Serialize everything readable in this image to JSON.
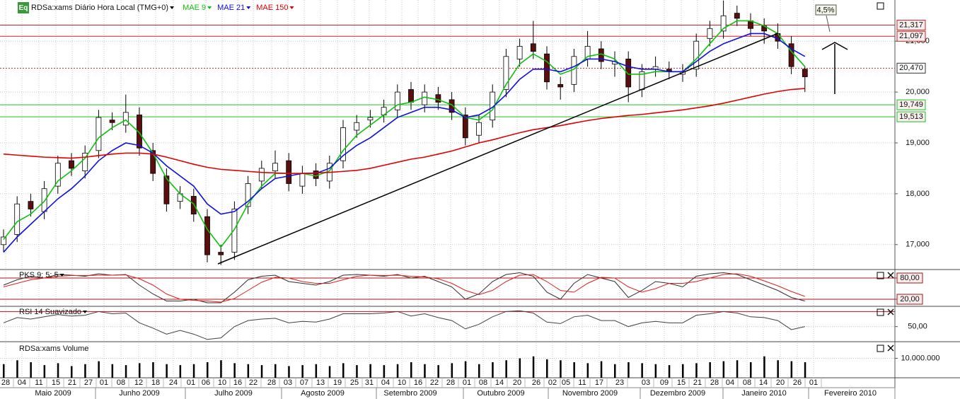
{
  "chart_data": [
    {
      "type": "candlestick",
      "icon_label": "Eq",
      "title": "RDSa:xams Diário Hora Local (TMG+0)",
      "open": [
        17000,
        17200,
        17850,
        17650,
        18150,
        18650,
        18450,
        18850,
        19450,
        19350,
        19550,
        18850,
        18350,
        17850,
        17950,
        17550,
        16850,
        16850,
        17750,
        18250,
        18450,
        18650,
        18150,
        18450,
        18250,
        18650,
        19250,
        19450,
        19550,
        19650,
        20050,
        19750,
        19950,
        19850,
        19550,
        19150,
        19450,
        20050,
        20650,
        20950,
        20750,
        20150,
        20150,
        20650,
        20850,
        20550,
        20650,
        20050,
        20450,
        20450,
        20350,
        20450,
        21050,
        21200,
        21550,
        21400,
        21300,
        21150,
        20950,
        20450
      ],
      "high": [
        17300,
        17950,
        18000,
        18250,
        18750,
        18800,
        18950,
        19650,
        19600,
        19950,
        19700,
        19000,
        18500,
        18150,
        18100,
        17700,
        17000,
        17850,
        18350,
        18650,
        18850,
        18800,
        18550,
        18600,
        18750,
        19450,
        19550,
        19650,
        19850,
        20150,
        20200,
        20150,
        20100,
        20000,
        19700,
        19550,
        20150,
        20850,
        21050,
        21400,
        20900,
        20300,
        20850,
        21200,
        21000,
        20800,
        20800,
        20550,
        20700,
        20600,
        20550,
        21150,
        21400,
        21800,
        21700,
        21550,
        21450,
        21350,
        21100,
        20500
      ],
      "low": [
        16850,
        17050,
        17550,
        17500,
        18000,
        18350,
        18300,
        18700,
        19250,
        19200,
        18750,
        18250,
        17650,
        17700,
        17450,
        16650,
        16600,
        16700,
        17600,
        18100,
        18300,
        18050,
        18000,
        18150,
        18100,
        18500,
        19100,
        19300,
        19400,
        19500,
        19650,
        19600,
        19650,
        19450,
        18950,
        19000,
        19300,
        19900,
        20500,
        20650,
        20050,
        19850,
        20000,
        20500,
        20450,
        20300,
        19800,
        19900,
        20300,
        20250,
        20200,
        20300,
        20900,
        21050,
        21300,
        21100,
        20950,
        20850,
        20350,
        20000
      ],
      "close": [
        17150,
        17800,
        17700,
        18100,
        18600,
        18500,
        18800,
        19500,
        19400,
        19600,
        18900,
        18400,
        17800,
        18000,
        17600,
        16800,
        16800,
        17700,
        18200,
        18500,
        18600,
        18200,
        18400,
        18300,
        18600,
        19300,
        19400,
        19500,
        19700,
        20000,
        19800,
        20000,
        19800,
        19600,
        19100,
        19400,
        20000,
        20700,
        20900,
        20800,
        20200,
        20100,
        20700,
        20900,
        20600,
        20600,
        20100,
        20400,
        20500,
        20400,
        20400,
        21000,
        21250,
        21500,
        21450,
        21250,
        21200,
        21000,
        20500,
        20300
      ],
      "up_color": "#ffffff",
      "down_color": "#5a0f0f",
      "series": [
        {
          "name": "MAE 9",
          "color": "#10c010",
          "values": [
            17100,
            17450,
            17600,
            17850,
            18250,
            18450,
            18700,
            19100,
            19300,
            19450,
            19200,
            18800,
            18300,
            18000,
            17800,
            17300,
            16950,
            17300,
            17800,
            18150,
            18400,
            18400,
            18400,
            18350,
            18450,
            18850,
            19150,
            19350,
            19550,
            19750,
            19800,
            19900,
            19850,
            19750,
            19500,
            19450,
            19650,
            20150,
            20550,
            20750,
            20600,
            20350,
            20450,
            20700,
            20750,
            20650,
            20350,
            20350,
            20400,
            20400,
            20400,
            20650,
            20950,
            21250,
            21400,
            21400,
            21300,
            21150,
            20800,
            20500
          ]
        },
        {
          "name": "MAE 21",
          "color": "#1010e0",
          "values": [
            16850,
            17150,
            17400,
            17650,
            17900,
            18100,
            18350,
            18650,
            18850,
            19000,
            18950,
            18800,
            18550,
            18350,
            18150,
            17800,
            17600,
            17650,
            17850,
            18100,
            18300,
            18350,
            18400,
            18400,
            18500,
            18750,
            18950,
            19100,
            19300,
            19500,
            19600,
            19700,
            19700,
            19650,
            19500,
            19550,
            19700,
            19950,
            20250,
            20450,
            20450,
            20400,
            20500,
            20650,
            20650,
            20600,
            20500,
            20450,
            20450,
            20400,
            20400,
            20600,
            20800,
            20950,
            21050,
            21150,
            21150,
            21050,
            20850,
            20700
          ]
        },
        {
          "name": "MAE 150",
          "color": "#e00000",
          "values": [
            18780,
            18760,
            18740,
            18720,
            18710,
            18700,
            18720,
            18750,
            18780,
            18800,
            18800,
            18780,
            18720,
            18650,
            18580,
            18520,
            18480,
            18460,
            18440,
            18420,
            18410,
            18400,
            18400,
            18410,
            18420,
            18440,
            18460,
            18500,
            18560,
            18620,
            18680,
            18720,
            18780,
            18840,
            18920,
            19000,
            19060,
            19130,
            19200,
            19260,
            19300,
            19340,
            19390,
            19440,
            19480,
            19510,
            19540,
            19560,
            19590,
            19620,
            19650,
            19690,
            19730,
            19780,
            19840,
            19900,
            19960,
            20010,
            20050,
            20070
          ]
        }
      ],
      "ylim": [
        16510,
        21810
      ],
      "yticks": [
        {
          "value": 17000,
          "label": "17,000"
        },
        {
          "value": 18000,
          "label": "18,000"
        },
        {
          "value": 19000,
          "label": "19,000"
        },
        {
          "value": 20000,
          "label": "20,000"
        },
        {
          "value": 21000,
          "label": "21,000"
        }
      ],
      "levels": [
        {
          "value": 21317,
          "label": "21,317",
          "color": "#d02020",
          "style": "solid"
        },
        {
          "value": 21097,
          "label": "21,097",
          "color": "#d02020",
          "style": "solid"
        },
        {
          "value": 20470,
          "label": "20,470",
          "color": "#d02020",
          "style": "dotted"
        },
        {
          "value": 19749,
          "label": "19,749",
          "color": "#20c020",
          "style": "solid"
        },
        {
          "value": 19513,
          "label": "19,513",
          "color": "#20c020",
          "style": "solid"
        }
      ],
      "annotation": "4,5%",
      "x_labels": [
        "28",
        "04",
        "11",
        "15",
        "21",
        "27",
        "01",
        "08",
        "12",
        "18",
        "24",
        "01",
        "06",
        "10",
        "16",
        "22",
        "28",
        "03",
        "07",
        "13",
        "19",
        "25",
        "31",
        "04",
        "10",
        "16",
        "22",
        "28",
        "01",
        "08",
        "14",
        "20",
        "26",
        "02",
        "05",
        "11",
        "17",
        "23",
        "03",
        "09",
        "15",
        "21",
        "28",
        "04",
        "08",
        "14",
        "20",
        "26",
        "01"
      ],
      "month_labels": [
        "Maio 2009",
        "Junho 2009",
        "Julho 2009",
        "Agosto 2009",
        "Setembro 2009",
        "Outubro 2009",
        "Novembro 2009",
        "Dezembro 2009",
        "Janeiro 2010",
        "Fevereiro 2010"
      ],
      "grid": true
    },
    {
      "type": "line",
      "title": "PKS 9; 5; 5",
      "series": [
        {
          "color": "#303030",
          "values": [
            60,
            75,
            85,
            80,
            90,
            88,
            85,
            92,
            88,
            90,
            60,
            35,
            15,
            15,
            20,
            10,
            10,
            40,
            75,
            85,
            88,
            70,
            65,
            60,
            70,
            88,
            90,
            88,
            85,
            90,
            80,
            85,
            70,
            55,
            20,
            35,
            70,
            90,
            95,
            85,
            40,
            20,
            65,
            90,
            80,
            70,
            25,
            45,
            70,
            65,
            55,
            85,
            92,
            95,
            90,
            75,
            60,
            45,
            25,
            15
          ]
        },
        {
          "color": "#e02020",
          "values": [
            55,
            65,
            75,
            80,
            85,
            87,
            87,
            88,
            88,
            89,
            78,
            60,
            35,
            20,
            17,
            15,
            12,
            22,
            45,
            68,
            82,
            80,
            70,
            65,
            65,
            75,
            85,
            88,
            87,
            88,
            85,
            83,
            78,
            65,
            45,
            33,
            45,
            70,
            88,
            90,
            70,
            45,
            40,
            65,
            82,
            80,
            55,
            40,
            50,
            65,
            65,
            70,
            80,
            90,
            92,
            85,
            72,
            58,
            42,
            28
          ]
        }
      ],
      "ylim": [
        0,
        100
      ],
      "yticks": [
        {
          "value": 80,
          "label": "80,00"
        },
        {
          "value": 20,
          "label": "20,00"
        }
      ],
      "tick_color": "#b01010"
    },
    {
      "type": "line",
      "title": "RSI 14 Suavizado",
      "series": [
        {
          "color": "#404040",
          "values": [
            55,
            62,
            60,
            63,
            66,
            64,
            65,
            70,
            67,
            68,
            55,
            48,
            40,
            45,
            40,
            33,
            35,
            50,
            58,
            60,
            61,
            55,
            57,
            56,
            60,
            67,
            67,
            67,
            68,
            70,
            64,
            67,
            62,
            58,
            47,
            53,
            63,
            70,
            71,
            68,
            56,
            54,
            63,
            65,
            58,
            58,
            50,
            55,
            57,
            55,
            55,
            65,
            67,
            70,
            68,
            63,
            62,
            58,
            46,
            50
          ]
        }
      ],
      "ylim": [
        30,
        75
      ],
      "yticks": [
        {
          "value": 50,
          "label": "50,00"
        }
      ],
      "levels": [
        {
          "value": 70,
          "color": "#c01010"
        }
      ]
    },
    {
      "type": "bar",
      "title": "RDSa:xams Volume",
      "color": "#000000",
      "values": [
        7000000,
        9000000,
        8000000,
        6500000,
        7500000,
        6000000,
        7000000,
        8500000,
        7000000,
        6500000,
        7500000,
        8000000,
        7000000,
        6500000,
        7000000,
        8000000,
        9000000,
        7500000,
        7000000,
        6500000,
        7000000,
        6000000,
        6500000,
        7000000,
        6000000,
        7500000,
        6500000,
        7000000,
        6500000,
        7000000,
        8000000,
        7000000,
        6500000,
        7500000,
        8500000,
        7000000,
        8000000,
        9000000,
        10000000,
        11000000,
        9500000,
        9000000,
        8000000,
        7500000,
        8500000,
        7000000,
        8000000,
        7500000,
        7000000,
        6500000,
        7000000,
        7500000,
        8000000,
        8500000,
        9000000,
        8000000,
        11000000,
        9000000,
        8500000,
        8000000
      ],
      "ylim": [
        0,
        17800000
      ],
      "yticks": [
        {
          "value": 10000000,
          "label": "10.000.000"
        }
      ]
    }
  ]
}
